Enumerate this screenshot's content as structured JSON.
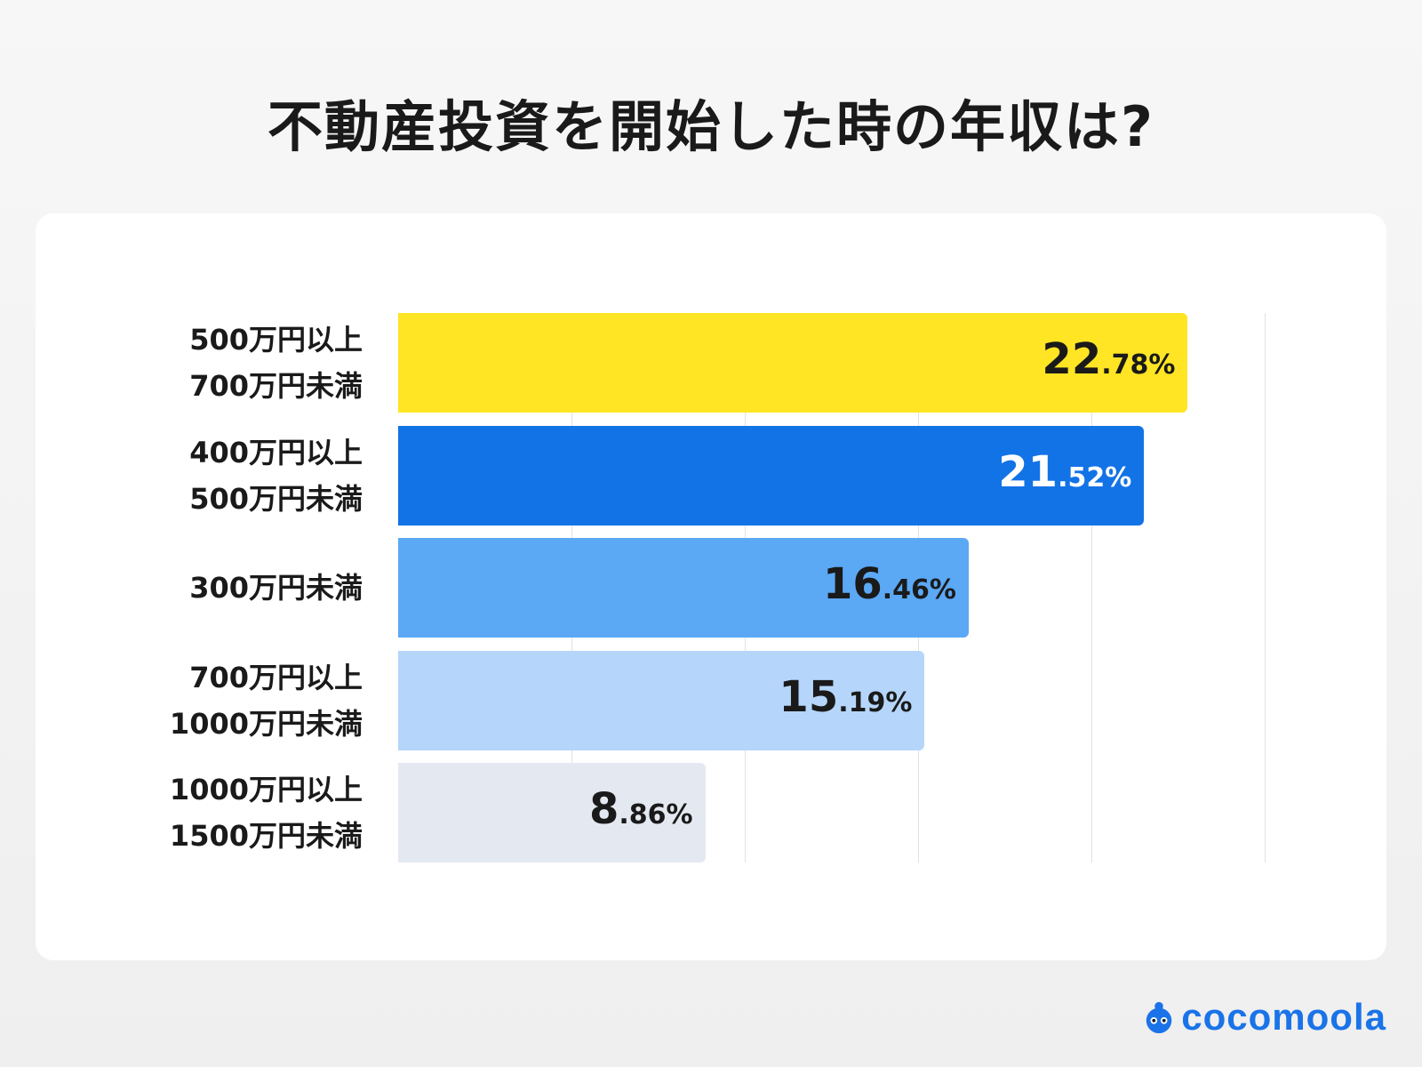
{
  "title": "不動産投資を開始した時の年収は?",
  "brand": {
    "name": "cocomoola",
    "icon": "mascot-icon",
    "color": "#1a73e8"
  },
  "chart_data": {
    "type": "bar",
    "orientation": "horizontal",
    "title": "不動産投資を開始した時の年収は?",
    "categories": [
      "500万円以上\n700万円未満",
      "400万円以上\n500万円未満",
      "300万円未満",
      "700万円以上\n1000万円未満",
      "1000万円以上\n1500万円未満"
    ],
    "values": [
      22.78,
      21.52,
      16.46,
      15.19,
      8.86
    ],
    "int_labels": [
      "22",
      "21",
      "16",
      "15",
      "8"
    ],
    "dec_labels": [
      ".78%",
      ".52%",
      ".46%",
      ".19%",
      ".86%"
    ],
    "colors": [
      "#FFE524",
      "#1273E6",
      "#5BA8F5",
      "#B5D6FA",
      "#E4E9F1"
    ],
    "label_colors": [
      "#1a1a1a",
      "#ffffff",
      "#1a1a1a",
      "#1a1a1a",
      "#1a1a1a"
    ],
    "xlim": [
      0,
      25
    ],
    "grid": true,
    "legend": "none"
  }
}
